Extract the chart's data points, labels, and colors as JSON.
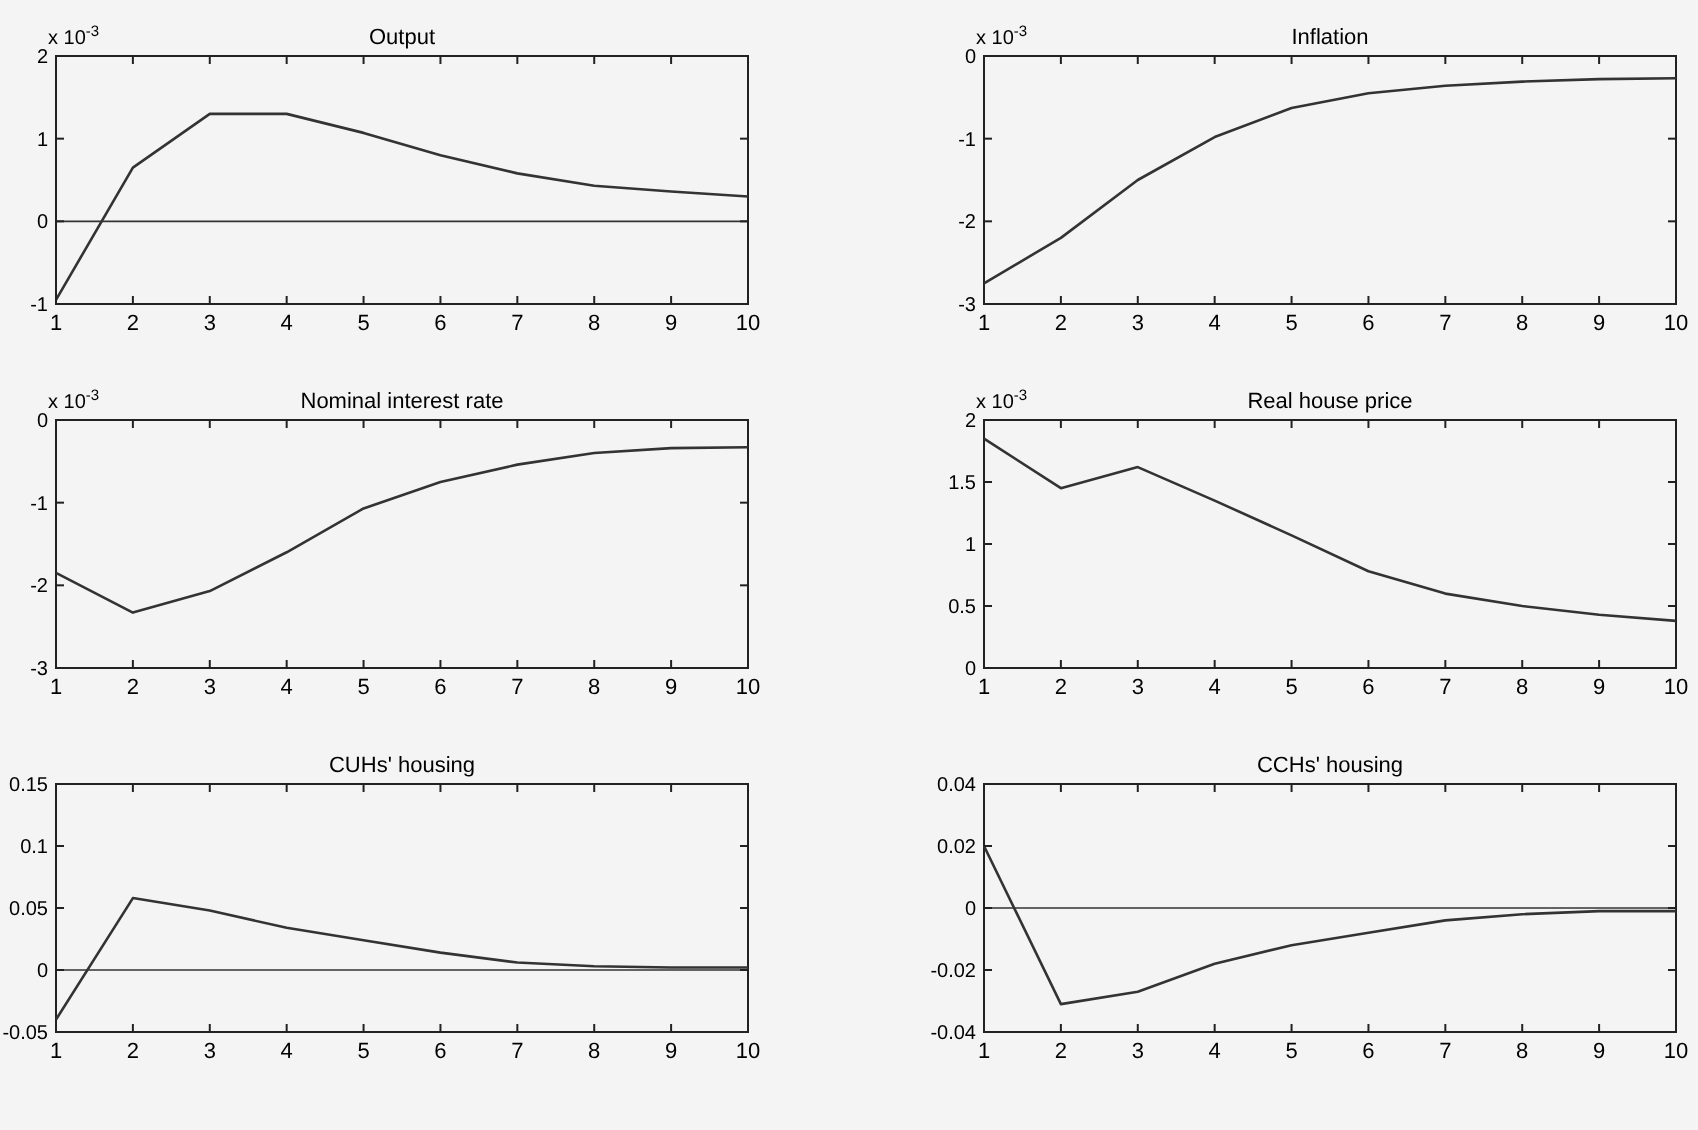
{
  "chart_data": [
    {
      "type": "line",
      "title": "Output",
      "annotations": [
        "x 10$^{-3}$"
      ],
      "x": [
        1,
        2,
        3,
        4,
        5,
        6,
        7,
        8,
        9,
        10
      ],
      "series": [
        {
          "color": "#333333",
          "values": [
            -0.95,
            0.65,
            1.3,
            1.3,
            1.07,
            0.8,
            0.58,
            0.43,
            0.36,
            0.3
          ]
        }
      ],
      "xlim": [
        1,
        10
      ],
      "xticks": [
        1,
        2,
        3,
        4,
        5,
        6,
        7,
        8,
        9,
        10
      ],
      "ylim": [
        -1,
        2
      ],
      "yticks": [
        -1,
        0,
        1,
        2
      ],
      "ref_lines": [
        {
          "axis": "y",
          "value": 0,
          "color": "#333333"
        }
      ],
      "grid": false
    },
    {
      "type": "line",
      "title": "Inflation",
      "annotations": [
        "x 10$^{-3}$"
      ],
      "x": [
        1,
        2,
        3,
        4,
        5,
        6,
        7,
        8,
        9,
        10
      ],
      "series": [
        {
          "color": "#333333",
          "values": [
            -2.75,
            -2.2,
            -1.5,
            -0.98,
            -0.63,
            -0.45,
            -0.36,
            -0.31,
            -0.28,
            -0.27
          ]
        }
      ],
      "xlim": [
        1,
        10
      ],
      "xticks": [
        1,
        2,
        3,
        4,
        5,
        6,
        7,
        8,
        9,
        10
      ],
      "ylim": [
        -3,
        0
      ],
      "yticks": [
        -3,
        -2,
        -1,
        0
      ],
      "grid": false
    },
    {
      "type": "line",
      "title": "Nominal interest rate",
      "annotations": [
        "x 10$^{-3}$"
      ],
      "x": [
        1,
        2,
        3,
        4,
        5,
        6,
        7,
        8,
        9,
        10
      ],
      "series": [
        {
          "color": "#333333",
          "values": [
            -1.85,
            -2.33,
            -2.07,
            -1.6,
            -1.07,
            -0.75,
            -0.54,
            -0.4,
            -0.34,
            -0.33
          ]
        }
      ],
      "xlim": [
        1,
        10
      ],
      "xticks": [
        1,
        2,
        3,
        4,
        5,
        6,
        7,
        8,
        9,
        10
      ],
      "ylim": [
        -3,
        0
      ],
      "yticks": [
        -3,
        -2,
        -1,
        0
      ],
      "grid": false
    },
    {
      "type": "line",
      "title": "Real house price",
      "annotations": [
        "x 10$^{-3}$"
      ],
      "x": [
        1,
        2,
        3,
        4,
        5,
        6,
        7,
        8,
        9,
        10
      ],
      "series": [
        {
          "color": "#333333",
          "values": [
            1.85,
            1.45,
            1.62,
            1.35,
            1.07,
            0.78,
            0.6,
            0.5,
            0.43,
            0.38
          ]
        }
      ],
      "xlim": [
        1,
        10
      ],
      "xticks": [
        1,
        2,
        3,
        4,
        5,
        6,
        7,
        8,
        9,
        10
      ],
      "ylim": [
        0,
        2
      ],
      "yticks": [
        0,
        0.5,
        1,
        1.5,
        2
      ],
      "grid": false
    },
    {
      "type": "line",
      "title": "CUHs' housing",
      "x": [
        1,
        2,
        3,
        4,
        5,
        6,
        7,
        8,
        9,
        10
      ],
      "series": [
        {
          "color": "#333333",
          "values": [
            -0.04,
            0.058,
            0.048,
            0.034,
            0.024,
            0.014,
            0.006,
            0.003,
            0.002,
            0.002
          ]
        }
      ],
      "xlim": [
        1,
        10
      ],
      "xticks": [
        1,
        2,
        3,
        4,
        5,
        6,
        7,
        8,
        9,
        10
      ],
      "ylim": [
        -0.05,
        0.15
      ],
      "yticks": [
        -0.05,
        0,
        0.05,
        0.1,
        0.15
      ],
      "ref_lines": [
        {
          "axis": "y",
          "value": 0,
          "color": "#333333"
        }
      ],
      "grid": false
    },
    {
      "type": "line",
      "title": "CCHs' housing",
      "x": [
        1,
        2,
        3,
        4,
        5,
        6,
        7,
        8,
        9,
        10
      ],
      "series": [
        {
          "color": "#333333",
          "values": [
            0.02,
            -0.031,
            -0.027,
            -0.018,
            -0.012,
            -0.008,
            -0.004,
            -0.002,
            -0.001,
            -0.001
          ]
        }
      ],
      "xlim": [
        1,
        10
      ],
      "xticks": [
        1,
        2,
        3,
        4,
        5,
        6,
        7,
        8,
        9,
        10
      ],
      "ylim": [
        -0.04,
        0.04
      ],
      "yticks": [
        -0.04,
        -0.02,
        0,
        0.02,
        0.04
      ],
      "ref_lines": [
        {
          "axis": "y",
          "value": 0,
          "color": "#333333"
        }
      ],
      "grid": false
    }
  ]
}
